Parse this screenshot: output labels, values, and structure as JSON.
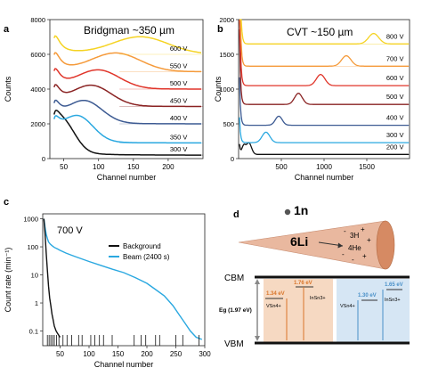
{
  "panels": {
    "a": {
      "letter": "a",
      "title": "Bridgman ~350 µm"
    },
    "b": {
      "letter": "b",
      "title": "CVT ~150 µm"
    },
    "c": {
      "letter": "c",
      "annotation": "700 V"
    },
    "d": {
      "letter": "d",
      "neutron_label": "1n",
      "lithium_label": "6Li",
      "tritium_label": "3H",
      "helium_label": "4He",
      "cbm_label": "CBM",
      "vbm_label": "VBM",
      "eg_label": "Eg (1.97 eV)",
      "levels": [
        {
          "value": "1.34 eV",
          "label": "VSn4+",
          "color": "#d9752a"
        },
        {
          "value": "1.76 eV",
          "label": "InSn3+",
          "color": "#d9752a"
        },
        {
          "value": "1.30 eV",
          "label": "VSn4+",
          "color": "#4a90c8"
        },
        {
          "value": "1.65 eV",
          "label": "InSn3+",
          "color": "#4a90c8"
        }
      ],
      "colors": {
        "cone": "#e9b89f",
        "band": "#111111",
        "orange_box": "#f6d9c2",
        "blue_box": "#d6e6f4"
      }
    }
  },
  "chart_data": [
    {
      "panel": "a",
      "type": "line",
      "title": "Bridgman ~350 µm",
      "xlabel": "Channel number",
      "ylabel": "Counts",
      "xlim": [
        30,
        250
      ],
      "ylim": [
        0,
        8000
      ],
      "xticks": [
        50,
        100,
        150,
        200
      ],
      "yticks": [
        0,
        2000,
        4000,
        6000,
        8000
      ],
      "series": [
        {
          "name": "300 V",
          "color": "#111111",
          "offset": 200,
          "peak_x": 48,
          "peak_height": 1750,
          "width": 18
        },
        {
          "name": "350 V",
          "color": "#2aa8e0",
          "offset": 900,
          "peak_x": 70,
          "peak_height": 1450,
          "width": 22
        },
        {
          "name": "400 V",
          "color": "#3c5a92",
          "offset": 2000,
          "peak_x": 80,
          "peak_height": 1250,
          "width": 25
        },
        {
          "name": "450 V",
          "color": "#8a2323",
          "offset": 3000,
          "peak_x": 90,
          "peak_height": 1150,
          "width": 28
        },
        {
          "name": "500 V",
          "color": "#e0352a",
          "offset": 4000,
          "peak_x": 100,
          "peak_height": 1050,
          "width": 30
        },
        {
          "name": "550 V",
          "color": "#f59a3a",
          "offset": 5000,
          "peak_x": 125,
          "peak_height": 1050,
          "width": 35
        },
        {
          "name": "600 V",
          "color": "#f5d323",
          "offset": 6000,
          "peak_x": 160,
          "peak_height": 1000,
          "width": 40
        }
      ]
    },
    {
      "panel": "b",
      "type": "line",
      "title": "CVT ~150 µm",
      "xlabel": "Channel number",
      "ylabel": "Counts",
      "xlim": [
        0,
        2000
      ],
      "ylim": [
        0,
        2000
      ],
      "xticks": [
        500,
        1000,
        1500
      ],
      "yticks": [
        0,
        500,
        1000,
        1500,
        2000
      ],
      "series": [
        {
          "name": "200 V",
          "color": "#111111",
          "offset": 60,
          "peak_x": 120,
          "peak_height": 170,
          "width": 30
        },
        {
          "name": "300 V",
          "color": "#2aa8e0",
          "offset": 230,
          "peak_x": 320,
          "peak_height": 150,
          "width": 45
        },
        {
          "name": "400 V",
          "color": "#3c5a92",
          "offset": 480,
          "peak_x": 470,
          "peak_height": 130,
          "width": 40
        },
        {
          "name": "500 V",
          "color": "#8a2323",
          "offset": 780,
          "peak_x": 700,
          "peak_height": 160,
          "width": 45
        },
        {
          "name": "600 V",
          "color": "#e0352a",
          "offset": 1050,
          "peak_x": 960,
          "peak_height": 160,
          "width": 50
        },
        {
          "name": "700 V",
          "color": "#f59a3a",
          "offset": 1330,
          "peak_x": 1260,
          "peak_height": 150,
          "width": 55
        },
        {
          "name": "800 V",
          "color": "#f5d323",
          "offset": 1650,
          "peak_x": 1580,
          "peak_height": 150,
          "width": 60
        }
      ]
    },
    {
      "panel": "c",
      "type": "line",
      "xlabel": "Channel number",
      "ylabel": "Count rate (min⁻¹)",
      "yscale": "log",
      "xlim": [
        20,
        300
      ],
      "ylim": [
        0.03,
        1500
      ],
      "xticks": [
        50,
        100,
        150,
        200,
        250,
        300
      ],
      "yticks": [
        0.1,
        1,
        10,
        100,
        1000
      ],
      "ytick_labels": [
        "0.1",
        "1",
        "10",
        "100",
        "1000"
      ],
      "legend_position": "top-right",
      "series": [
        {
          "name": "Background",
          "color": "#111111",
          "x": [
            22,
            24,
            26,
            28,
            30,
            32,
            34,
            36,
            38,
            40,
            43,
            46,
            50
          ],
          "y": [
            1000,
            300,
            60,
            15,
            4,
            1.5,
            0.8,
            0.4,
            0.25,
            0.15,
            0.1,
            0.08,
            0.06
          ]
        },
        {
          "name": "Beam (2400 s)",
          "color": "#2aa8e0",
          "x": [
            22,
            24,
            26,
            28,
            30,
            33,
            36,
            40,
            45,
            50,
            60,
            70,
            80,
            100,
            120,
            140,
            160,
            180,
            200,
            215,
            230,
            245,
            255,
            265,
            275,
            285,
            295
          ],
          "y": [
            1000,
            500,
            280,
            200,
            150,
            125,
            110,
            95,
            85,
            75,
            60,
            50,
            42,
            30,
            22,
            16,
            12,
            8,
            5,
            3,
            1.8,
            0.8,
            0.4,
            0.2,
            0.1,
            0.06,
            0.05
          ]
        }
      ]
    }
  ]
}
